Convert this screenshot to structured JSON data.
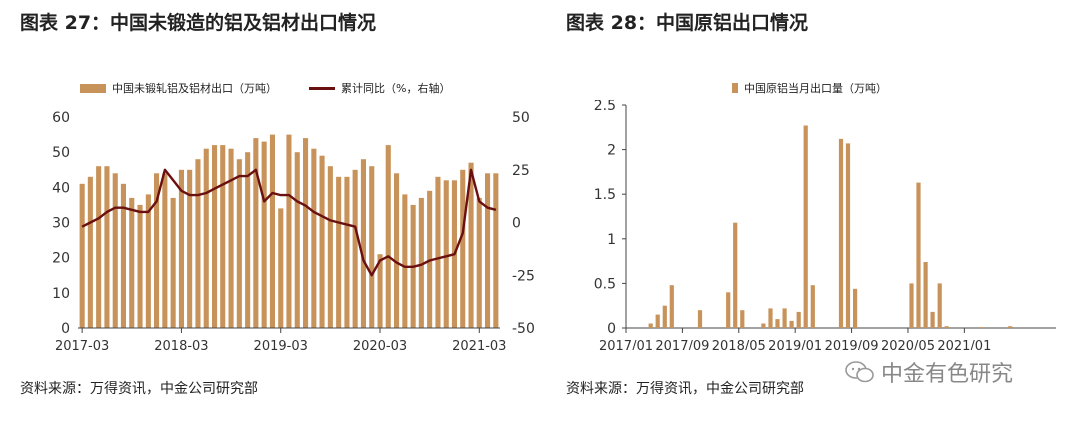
{
  "left": {
    "title": "图表 27：中国未锻造的铝及铝材出口情况",
    "source": "资料来源：万得资讯，中金公司研究部"
  },
  "right": {
    "title": "图表 28：中国原铝出口情况",
    "source": "资料来源：万得资讯，中金公司研究部"
  },
  "watermark": {
    "text": "中金有色研究",
    "icon": "wechat-icon"
  },
  "colors": {
    "bar": "#c8935a",
    "line": "#6b1010"
  },
  "chart_data": [
    {
      "type": "bar",
      "series": [
        {
          "name": "中国未锻轧铝及铝材出口（万吨）",
          "type": "bar",
          "axis": "left",
          "values": [
            41,
            43,
            46,
            46,
            44,
            41,
            37,
            35,
            38,
            44,
            44,
            37,
            45,
            45,
            48,
            51,
            52,
            52,
            51,
            48,
            50,
            54,
            53,
            55,
            34,
            55,
            50,
            54,
            51,
            49,
            46,
            43,
            43,
            45,
            48,
            46,
            21,
            52,
            44,
            38,
            35,
            37,
            39,
            43,
            42,
            42,
            45,
            47,
            37,
            44,
            44
          ]
        },
        {
          "name": "累计同比（%，右轴）",
          "type": "line",
          "axis": "right",
          "values": [
            -2,
            0,
            2,
            5,
            7,
            7,
            6,
            5,
            5,
            10,
            25,
            20,
            15,
            13,
            13,
            14,
            16,
            18,
            20,
            22,
            22,
            25,
            10,
            14,
            13,
            13,
            10,
            8,
            5,
            3,
            1,
            0,
            -1,
            -2,
            -18,
            -25,
            -18,
            -16,
            -19,
            -21,
            -21,
            -20,
            -18,
            -17,
            -16,
            -15,
            -5,
            25,
            10,
            7,
            6
          ]
        }
      ],
      "x_ticks": [
        "2017-03",
        "2018-03",
        "2019-03",
        "2020-03",
        "2021-03"
      ],
      "y_left": {
        "min": 0,
        "max": 60,
        "ticks": [
          0,
          10,
          20,
          30,
          40,
          50,
          60
        ]
      },
      "y_right": {
        "min": -50,
        "max": 50,
        "ticks": [
          -50,
          -25,
          0,
          25,
          50
        ]
      },
      "legend": "top"
    },
    {
      "type": "bar",
      "series": [
        {
          "name": "中国原铝当月出口量（万吨）",
          "values": [
            0,
            0,
            0,
            0.05,
            0.15,
            0.25,
            0.48,
            0,
            0,
            0,
            0.2,
            0,
            0,
            0,
            0.4,
            1.18,
            0.2,
            0,
            0,
            0.05,
            0.22,
            0.1,
            0.22,
            0.08,
            0.18,
            2.27,
            0.48,
            0,
            0,
            0,
            2.12,
            2.07,
            0.44,
            0,
            0,
            0,
            0,
            0,
            0,
            0,
            0.5,
            1.63,
            0.74,
            0.18,
            0.5,
            0.02,
            0,
            0,
            0,
            0,
            0.01,
            0,
            0,
            0,
            0.02,
            0,
            0,
            0,
            0,
            0,
            0
          ]
        }
      ],
      "x_ticks": [
        "2017/01",
        "2017/09",
        "2018/05",
        "2019/01",
        "2019/09",
        "2020/05",
        "2021/01"
      ],
      "y": {
        "min": 0,
        "max": 2.5,
        "ticks": [
          "0",
          "0.5",
          "1",
          "1.5",
          "2",
          "2.5"
        ]
      },
      "legend": "top"
    }
  ]
}
